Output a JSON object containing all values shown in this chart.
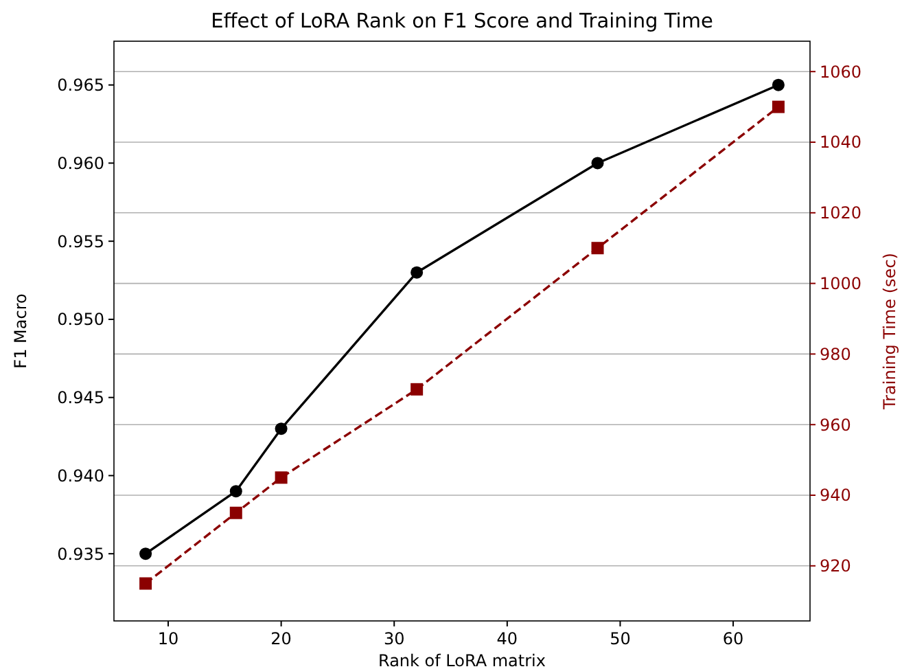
{
  "chart_data": {
    "type": "line",
    "title": "Effect of LoRA Rank on F1 Score and Training Time",
    "xlabel": "Rank of LoRA matrix",
    "ylabel": "F1 Macro",
    "y2label": "Training Time (sec)",
    "x": [
      8,
      16,
      20,
      32,
      48,
      64
    ],
    "xlim": [
      5.2,
      66.8
    ],
    "xticks": [
      10,
      20,
      30,
      40,
      50,
      60
    ],
    "ylim": [
      0.9307,
      0.9678
    ],
    "yticks": [
      {
        "value": 0.935,
        "label": "0.935"
      },
      {
        "value": 0.94,
        "label": "0.940"
      },
      {
        "value": 0.945,
        "label": "0.945"
      },
      {
        "value": 0.95,
        "label": "0.950"
      },
      {
        "value": 0.955,
        "label": "0.955"
      },
      {
        "value": 0.96,
        "label": "0.960"
      },
      {
        "value": 0.965,
        "label": "0.965"
      }
    ],
    "y2lim": [
      904.4,
      1068.6
    ],
    "y2ticks": [
      920,
      940,
      960,
      980,
      1000,
      1020,
      1040,
      1060
    ],
    "grid": "y",
    "series": [
      {
        "color": "#000000",
        "values": [
          0.935,
          0.939,
          0.943,
          0.953,
          0.96,
          0.965
        ],
        "marker": "circle",
        "line_style": "solid"
      },
      {
        "color": "#8b0000",
        "values": [
          915,
          935,
          945,
          970,
          1010,
          1050
        ],
        "axis": "y2",
        "marker": "square",
        "line_style": "dashed"
      }
    ]
  }
}
